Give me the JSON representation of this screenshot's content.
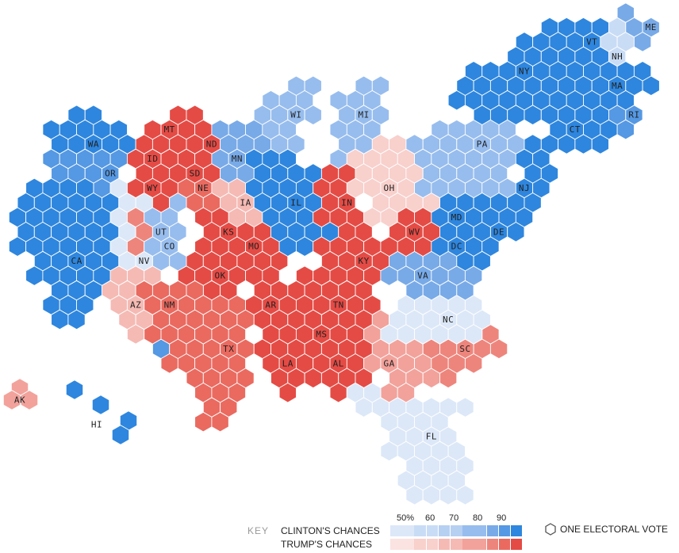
{
  "colors": {
    "clinton": [
      "#dce8f8",
      "#c9dcf6",
      "#b6d0f2",
      "#97bdee",
      "#78aae8",
      "#5598e3",
      "#2e86de"
    ],
    "trump": [
      "#fbe3e1",
      "#f8d0cc",
      "#f5bab4",
      "#f2a29b",
      "#ee857c",
      "#ea6a60",
      "#e54b45"
    ],
    "border": "#222222"
  },
  "states": [
    {
      "abbr": "WA",
      "ev": 12,
      "shade": "c6"
    },
    {
      "abbr": "OR",
      "ev": 7,
      "shade": "c5"
    },
    {
      "abbr": "CA",
      "ev": 55,
      "shade": "c6"
    },
    {
      "abbr": "NV",
      "ev": 6,
      "shade": "c0"
    },
    {
      "abbr": "ID",
      "ev": 4,
      "shade": "t6"
    },
    {
      "abbr": "MT",
      "ev": 3,
      "shade": "t6"
    },
    {
      "abbr": "WY",
      "ev": 3,
      "shade": "t6"
    },
    {
      "abbr": "UT",
      "ev": 6,
      "shade": "t4"
    },
    {
      "abbr": "CO",
      "ev": 9,
      "shade": "c3"
    },
    {
      "abbr": "AZ",
      "ev": 11,
      "shade": "t2"
    },
    {
      "abbr": "NM",
      "ev": 5,
      "shade": "c5"
    },
    {
      "abbr": "ND",
      "ev": 3,
      "shade": "t6"
    },
    {
      "abbr": "SD",
      "ev": 3,
      "shade": "t6"
    },
    {
      "abbr": "NE",
      "ev": 5,
      "shade": "t5"
    },
    {
      "abbr": "KS",
      "ev": 6,
      "shade": "t6"
    },
    {
      "abbr": "OK",
      "ev": 7,
      "shade": "t6"
    },
    {
      "abbr": "TX",
      "ev": 38,
      "shade": "t5"
    },
    {
      "abbr": "MN",
      "ev": 10,
      "shade": "c4"
    },
    {
      "abbr": "IA",
      "ev": 6,
      "shade": "t2"
    },
    {
      "abbr": "MO",
      "ev": 10,
      "shade": "t6"
    },
    {
      "abbr": "AR",
      "ev": 6,
      "shade": "t6"
    },
    {
      "abbr": "LA",
      "ev": 8,
      "shade": "t6"
    },
    {
      "abbr": "WI",
      "ev": 10,
      "shade": "c3"
    },
    {
      "abbr": "IL",
      "ev": 20,
      "shade": "c6"
    },
    {
      "abbr": "MI",
      "ev": 16,
      "shade": "c3"
    },
    {
      "abbr": "IN",
      "ev": 11,
      "shade": "t6"
    },
    {
      "abbr": "OH",
      "ev": 18,
      "shade": "t1"
    },
    {
      "abbr": "KY",
      "ev": 8,
      "shade": "t6"
    },
    {
      "abbr": "TN",
      "ev": 11,
      "shade": "t6"
    },
    {
      "abbr": "MS",
      "ev": 6,
      "shade": "t6"
    },
    {
      "abbr": "AL",
      "ev": 9,
      "shade": "t6"
    },
    {
      "abbr": "GA",
      "ev": 16,
      "shade": "t3"
    },
    {
      "abbr": "FL",
      "ev": 29,
      "shade": "c0"
    },
    {
      "abbr": "SC",
      "ev": 9,
      "shade": "t4"
    },
    {
      "abbr": "NC",
      "ev": 15,
      "shade": "c0"
    },
    {
      "abbr": "VA",
      "ev": 13,
      "shade": "c4"
    },
    {
      "abbr": "WV",
      "ev": 5,
      "shade": "t6"
    },
    {
      "abbr": "PA",
      "ev": 20,
      "shade": "c3"
    },
    {
      "abbr": "MD",
      "ev": 10,
      "shade": "c6"
    },
    {
      "abbr": "DE",
      "ev": 3,
      "shade": "c6"
    },
    {
      "abbr": "DC",
      "ev": 3,
      "shade": "c6"
    },
    {
      "abbr": "NJ",
      "ev": 14,
      "shade": "c6"
    },
    {
      "abbr": "NY",
      "ev": 29,
      "shade": "c6"
    },
    {
      "abbr": "CT",
      "ev": 7,
      "shade": "c6"
    },
    {
      "abbr": "RI",
      "ev": 4,
      "shade": "c5"
    },
    {
      "abbr": "MA",
      "ev": 11,
      "shade": "c6"
    },
    {
      "abbr": "VT",
      "ev": 3,
      "shade": "c6"
    },
    {
      "abbr": "NH",
      "ev": 4,
      "shade": "c1"
    },
    {
      "abbr": "ME",
      "ev": 4,
      "shade": "c4"
    },
    {
      "abbr": "AK",
      "ev": 3,
      "shade": "t3"
    },
    {
      "abbr": "HI",
      "ev": 4,
      "shade": "c6"
    }
  ],
  "legend": {
    "key_label": "KEY",
    "clinton_label": "CLINTON'S CHANCES",
    "trump_label": "TRUMP'S CHANCES",
    "ticks": [
      "50%",
      "60",
      "70",
      "80",
      "90"
    ],
    "hex_label": "ONE ELECTORAL VOTE"
  }
}
